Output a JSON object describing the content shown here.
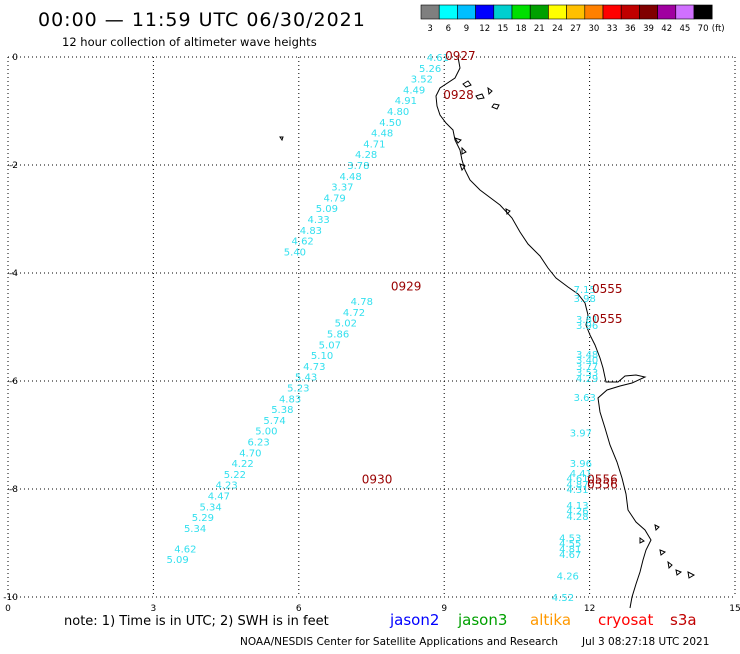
{
  "header": {
    "title": "00:00 — 11:59 UTC 06/30/2021",
    "subtitle": "12 hour collection of altimeter wave heights"
  },
  "colorbar": {
    "labels": [
      "3",
      "6",
      "9",
      "12",
      "15",
      "18",
      "21",
      "24",
      "27",
      "30",
      "33",
      "36",
      "39",
      "42",
      "45",
      "70"
    ],
    "unit": "(ft)",
    "colors": [
      "#7f7f7f",
      "#00ffff",
      "#00bfff",
      "#0000ff",
      "#00cfcf",
      "#00e000",
      "#00a000",
      "#ffff00",
      "#ffc000",
      "#ff8000",
      "#ff0000",
      "#c00000",
      "#800000",
      "#a000a0",
      "#d070ff",
      "#000000"
    ]
  },
  "footer": {
    "note": "note:  1) Time is in UTC;  2) SWH is in feet",
    "legend": [
      {
        "name": "jason2",
        "color": "#0000ff"
      },
      {
        "name": "jason3",
        "color": "#00a000"
      },
      {
        "name": "altika",
        "color": "#ff9900"
      },
      {
        "name": "cryosat",
        "color": "#ff0000"
      },
      {
        "name": "s3a",
        "color": "#c00000"
      }
    ],
    "credit": "NOAA/NESDIS Center for Satellite Applications and Research",
    "timestamp": "Jul  3 08:27:18 UTC 2021"
  },
  "chart_data": {
    "type": "scatter",
    "xlim": [
      0,
      15
    ],
    "ylim": [
      -10,
      0
    ],
    "xticks": [
      "0",
      "3",
      "6",
      "9",
      "12",
      "15"
    ],
    "yticks": [
      "0",
      "-2",
      "-4",
      "-6",
      "-8",
      "-10"
    ],
    "grid": true,
    "swh_color": "#33e0ef",
    "time_color": "#990000",
    "track_a": {
      "x": [
        8.87,
        8.71,
        8.54,
        8.38,
        8.21,
        8.05,
        7.89,
        7.72,
        7.56,
        7.39,
        7.23,
        7.07,
        6.9,
        6.74,
        6.58,
        6.41,
        6.25,
        6.08,
        5.92
      ],
      "swh": [
        "4.61",
        "5.26",
        "3.52",
        "4.49",
        "4.91",
        "4.80",
        "4.50",
        "4.48",
        "4.71",
        "4.28",
        "3.78",
        "4.48",
        "3.37",
        "4.79",
        "5.09",
        "4.33",
        "4.83",
        "4.62",
        "5.40"
      ]
    },
    "track_b": {
      "x": [
        7.3,
        7.14,
        6.97,
        6.81,
        6.64,
        6.48,
        6.32,
        6.15,
        5.99,
        5.82,
        5.66,
        5.5,
        5.33,
        5.17,
        5.0,
        4.84,
        4.68,
        4.51,
        4.35,
        4.18,
        4.02,
        3.86
      ],
      "swh": [
        "4.78",
        "4.72",
        "5.02",
        "5.86",
        "5.07",
        "5.10",
        "4.73",
        "5.43",
        "5.23",
        "4.83",
        "5.38",
        "5.74",
        "5.00",
        "6.23",
        "4.70",
        "4.22",
        "5.22",
        "4.23",
        "4.47",
        "5.34",
        "5.29",
        "5.34"
      ]
    },
    "track_c": {
      "x": [
        3.66,
        3.5
      ],
      "swh": [
        "4.62",
        "5.09"
      ]
    },
    "track_a_y_start": 0.0,
    "track_a_y_step": -0.2,
    "track_b_y_start": -4.52,
    "track_b_y_step": -0.2,
    "track_c_y_start": -9.1,
    "track_c_y_step": -0.2,
    "east_labels": [
      {
        "x": 11.9,
        "y": -4.3,
        "swh": "7.15"
      },
      {
        "x": 11.9,
        "y": -4.46,
        "swh": "3.98"
      },
      {
        "x": 11.95,
        "y": -4.85,
        "swh": "3.81"
      },
      {
        "x": 11.95,
        "y": -4.96,
        "swh": "3.96"
      },
      {
        "x": 11.95,
        "y": -5.5,
        "swh": "3.48"
      },
      {
        "x": 11.95,
        "y": -5.6,
        "swh": "3.40"
      },
      {
        "x": 11.95,
        "y": -5.72,
        "swh": "3.77"
      },
      {
        "x": 11.95,
        "y": -5.83,
        "swh": "3.53"
      },
      {
        "x": 11.95,
        "y": -5.94,
        "swh": "4.29"
      },
      {
        "x": 11.9,
        "y": -6.3,
        "swh": "3.63"
      },
      {
        "x": 11.82,
        "y": -6.95,
        "swh": "3.97"
      },
      {
        "x": 11.82,
        "y": -7.52,
        "swh": "3.96"
      },
      {
        "x": 11.82,
        "y": -7.7,
        "swh": "4.41"
      },
      {
        "x": 11.75,
        "y": -7.8,
        "swh": "4.61"
      },
      {
        "x": 11.75,
        "y": -7.91,
        "swh": "4.87"
      },
      {
        "x": 11.75,
        "y": -8.0,
        "swh": "4.31"
      },
      {
        "x": 11.75,
        "y": -8.3,
        "swh": "4.13"
      },
      {
        "x": 11.75,
        "y": -8.4,
        "swh": "4.26"
      },
      {
        "x": 11.75,
        "y": -8.5,
        "swh": "4.28"
      },
      {
        "x": 11.6,
        "y": -8.9,
        "swh": "4.53"
      },
      {
        "x": 11.6,
        "y": -9.0,
        "swh": "4.55"
      },
      {
        "x": 11.6,
        "y": -9.1,
        "swh": "4.81"
      },
      {
        "x": 11.6,
        "y": -9.2,
        "swh": "4.67"
      },
      {
        "x": 11.55,
        "y": -9.6,
        "swh": "4.26"
      },
      {
        "x": 11.45,
        "y": -10.0,
        "swh": "4.52"
      }
    ],
    "time_labels": [
      {
        "x": 9.02,
        "y": 0.02,
        "text": "0927"
      },
      {
        "x": 8.98,
        "y": -0.7,
        "text": "0928"
      },
      {
        "x": 7.9,
        "y": -4.25,
        "text": "0929"
      },
      {
        "x": 7.3,
        "y": -7.82,
        "text": "0930"
      },
      {
        "x": 12.05,
        "y": -4.3,
        "text": "0555"
      },
      {
        "x": 12.05,
        "y": -4.85,
        "text": "0555"
      },
      {
        "x": 11.95,
        "y": -7.82,
        "text": "0556"
      },
      {
        "x": 11.95,
        "y": -7.92,
        "text": "0556"
      }
    ]
  }
}
